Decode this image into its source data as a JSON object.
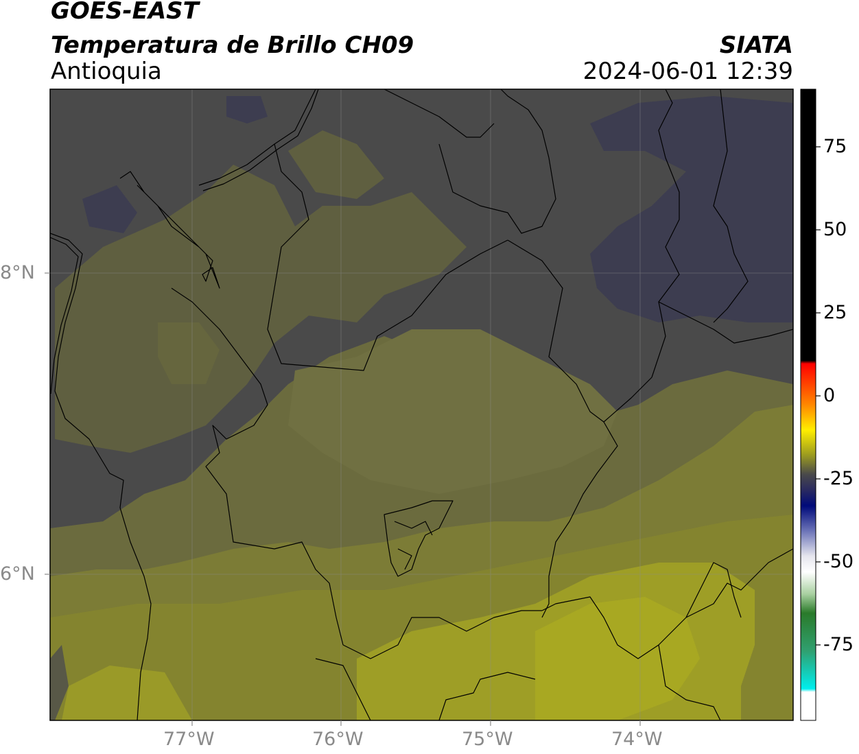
{
  "header": {
    "satellite": "GOES-EAST",
    "product": "Temperatura de Brillo CH09",
    "region": "Antioquia",
    "brand": "SIATA",
    "datetime": "2024-06-01 12:39"
  },
  "map": {
    "lon_range": [
      -77.95,
      -73.0
    ],
    "lat_range": [
      5.05,
      9.25
    ],
    "lon_ticks": [
      {
        "value": -77,
        "label": "77°W"
      },
      {
        "value": -76,
        "label": "76°W"
      },
      {
        "value": -75,
        "label": "75°W"
      },
      {
        "value": -74,
        "label": "74°W"
      }
    ],
    "lat_ticks": [
      {
        "value": 8,
        "label": "8°N"
      },
      {
        "value": 6,
        "label": "6°N"
      }
    ],
    "gridlines": true
  },
  "colorbar": {
    "range": [
      -95,
      92
    ],
    "ticks": [
      {
        "value": 75,
        "label": "75"
      },
      {
        "value": 50,
        "label": "50"
      },
      {
        "value": 25,
        "label": "25"
      },
      {
        "value": 0,
        "label": "0"
      },
      {
        "value": -25,
        "label": "-25"
      },
      {
        "value": -50,
        "label": "-50"
      },
      {
        "value": -75,
        "label": "-75"
      }
    ],
    "colors": {
      "black": "#000000",
      "red": "#ff0000",
      "orange": "#ff9900",
      "yellow": "#ffff00",
      "olive": "#6b6b3a",
      "gray": "#4a4a4a",
      "navy": "#000a7a",
      "white": "#ffffff",
      "green": "#2a7a2a",
      "cyan": "#00eeee"
    }
  },
  "palette": {
    "purple_cloud": "#3d3d50",
    "dark_gray": "#4a4a4a",
    "olive_dark": "#5f5f40",
    "olive_mid": "#6b6b3e",
    "olive_light": "#84842f",
    "yellow_olive": "#a4a422",
    "border": "#000000"
  }
}
